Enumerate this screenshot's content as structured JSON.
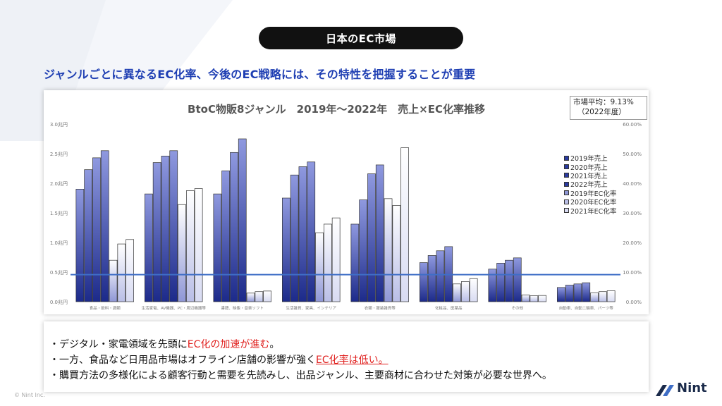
{
  "header": {
    "title": "日本のEC市場",
    "headline": "ジャンルごとに異なるEC化率、今後のEC戦略には、その特性を把握することが重要"
  },
  "market_avg": {
    "line1": "市場平均：9.13%",
    "line2": "（2022年度）"
  },
  "chart_data": {
    "type": "bar",
    "title": "BtoC物販8ジャンル　2019年～2022年　売上×EC化率推移",
    "categories": [
      "食品・飲料・酒類",
      "生活家電、AV機器、PC・周辺機器等",
      "書籍、映像・音楽ソフト",
      "生活雑貨、家具、インテリア",
      "衣類・服装雑貨等",
      "化粧品、医薬品",
      "その他",
      "自動車、自動二輪車、パーツ等"
    ],
    "y_left": {
      "min": 0,
      "max": 3.0,
      "ticks": [
        "0.0兆円",
        "0.5兆円",
        "1.0兆円",
        "1.5兆円",
        "2.0兆円",
        "2.5兆円",
        "3.0兆円"
      ]
    },
    "y_right": {
      "min": 0,
      "max": 60,
      "ticks": [
        "0.00%",
        "10.00%",
        "20.00%",
        "30.00%",
        "40.00%",
        "50.00%",
        "60.00%"
      ]
    },
    "series": [
      {
        "name": "2019年売上",
        "axis": "left",
        "color": "#4b58b8",
        "values": [
          1.9,
          1.82,
          1.82,
          1.75,
          1.31,
          0.66,
          0.55,
          0.24
        ]
      },
      {
        "name": "2020年売上",
        "axis": "left",
        "color": "#4b58b8",
        "values": [
          2.23,
          2.35,
          2.21,
          2.14,
          1.72,
          0.78,
          0.65,
          0.28
        ]
      },
      {
        "name": "2021年売上",
        "axis": "left",
        "color": "#4b58b8",
        "values": [
          2.43,
          2.46,
          2.52,
          2.28,
          2.16,
          0.86,
          0.7,
          0.3
        ]
      },
      {
        "name": "2022年売上",
        "axis": "left",
        "color": "#4b58b8",
        "values": [
          2.55,
          2.55,
          2.75,
          2.36,
          2.31,
          0.93,
          0.74,
          0.32
        ]
      },
      {
        "name": "2019年EC化率",
        "axis": "right",
        "color": "#8f97d6",
        "values": [
          14.0,
          32.8,
          2.9,
          23.3,
          34.8,
          6.0,
          2.3,
          3.0
        ]
      },
      {
        "name": "2020年EC化率",
        "axis": "right",
        "color": "#b9bee6",
        "values": [
          19.5,
          37.5,
          3.4,
          26.2,
          32.5,
          6.8,
          2.0,
          3.4
        ]
      },
      {
        "name": "2021年EC化率",
        "axis": "right",
        "color": "#d8dbf2",
        "values": [
          21.0,
          38.2,
          3.6,
          28.3,
          52.0,
          7.8,
          2.1,
          3.7
        ]
      }
    ],
    "reference_line": {
      "value": 9.13,
      "axis": "right",
      "color": "#3f6ec6"
    },
    "legend_position": "right",
    "grid": false
  },
  "notes": {
    "n1a": "・デジタル・家電領域を先頭に",
    "n1b": "EC化の加速が進む",
    "n1c": "。",
    "n2a": "・一方、食品など日用品市場はオフライン店舗の影響が強く",
    "n2b": "EC化率は低い。",
    "n3": "・購買方法の多様化による顧客行動と需要を先読みし、出品ジャンル、主要商材に合わせた対策が必要な世界へ。"
  },
  "footer": {
    "copyright": "© Nint Inc.",
    "logo_text": "Nint"
  }
}
